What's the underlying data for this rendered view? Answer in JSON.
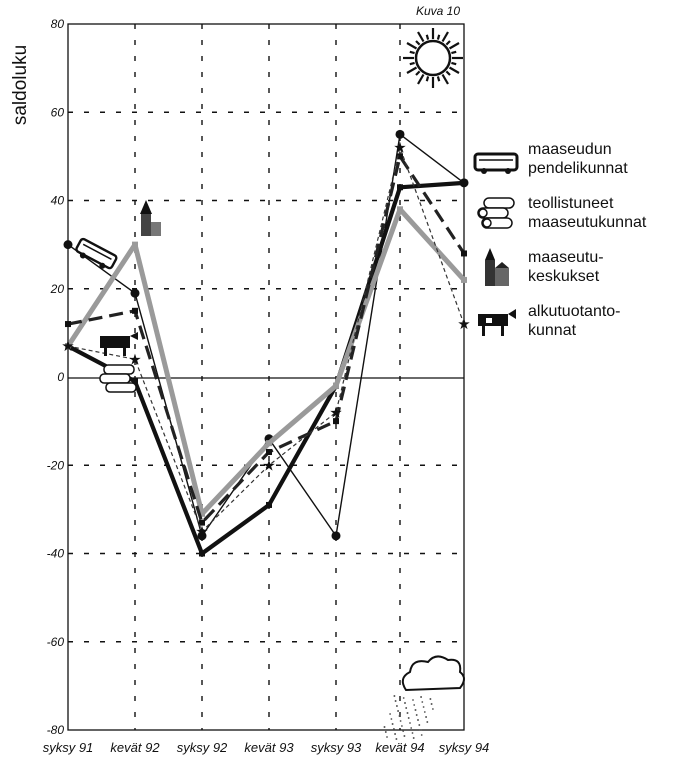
{
  "figure": {
    "note": "Kuva 10"
  },
  "chart_data": {
    "type": "line",
    "title": "",
    "xlabel": "",
    "ylabel": "saldoluku",
    "ylim": [
      -80,
      80
    ],
    "yticks": [
      -80,
      -60,
      -40,
      -20,
      0,
      20,
      40,
      60,
      80
    ],
    "grid": true,
    "legend_position": "right",
    "categories": [
      "syksy 91",
      "kevät 92",
      "syksy 92",
      "kevät 93",
      "syksy 93",
      "kevät 94",
      "syksy 94"
    ],
    "series": [
      {
        "name": "maaseudun pendelikunnat",
        "values": [
          30,
          19,
          -36,
          -14,
          -36,
          55,
          44
        ],
        "style": "thin",
        "marker": "dot",
        "icon": "bus-icon"
      },
      {
        "name": "teollistuneet maaseutukunnat",
        "values": [
          7,
          -1,
          -40,
          -29,
          -2,
          43,
          44
        ],
        "style": "thick",
        "icon": "logs-icon"
      },
      {
        "name": "maaseutukeskukset",
        "values": [
          7,
          30,
          -31,
          -15,
          -2,
          38,
          22
        ],
        "style": "gray",
        "icon": "church-icon"
      },
      {
        "name": "alkutuotantokunnat",
        "values": [
          12,
          15,
          -33,
          -17,
          -10,
          50,
          28
        ],
        "style": "dashed",
        "icon": "cow-icon"
      },
      {
        "name": "",
        "values": [
          7,
          4,
          -35,
          -20,
          -8,
          52,
          12
        ],
        "style": "star",
        "marker": "star"
      }
    ]
  },
  "legend": [
    {
      "label": "maaseudun\npendelikunnat",
      "icon": "bus-icon"
    },
    {
      "label": "teollistuneet\nmaaseutukunnat",
      "icon": "logs-icon"
    },
    {
      "label": "maaseutu-\nkeskukset",
      "icon": "church-icon"
    },
    {
      "label": "alkutuotanto-\nkunnat",
      "icon": "cow-icon"
    }
  ],
  "decorations": {
    "top": "sun-icon",
    "bottom": "rain-cloud-icon"
  },
  "colors": {
    "ink": "#111111",
    "gray": "#9a9a9a"
  }
}
